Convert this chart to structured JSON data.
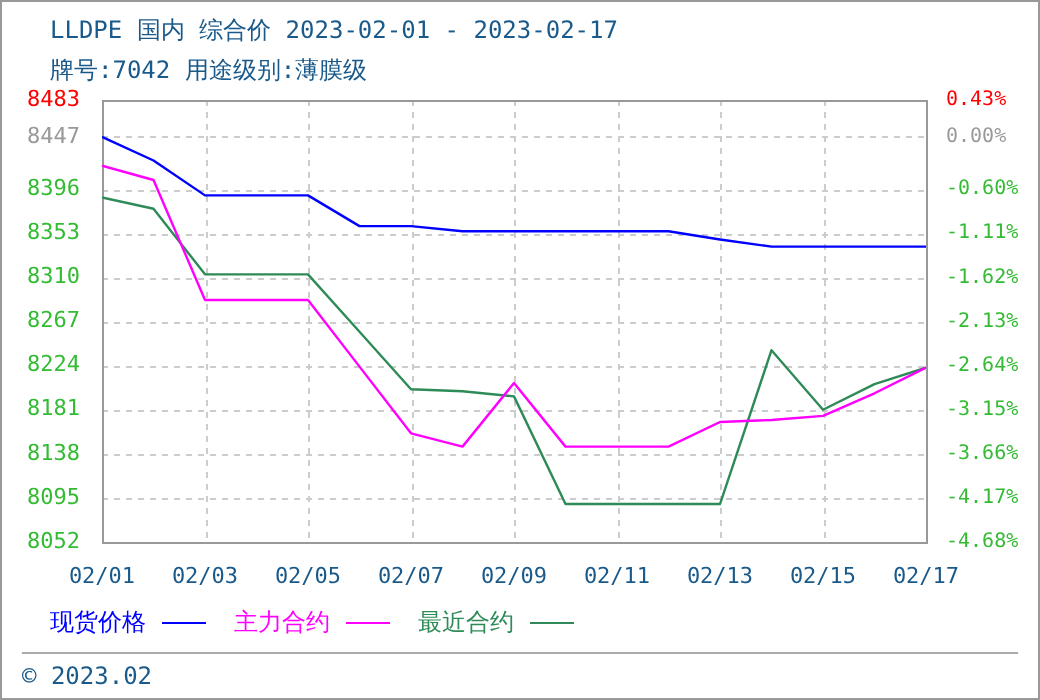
{
  "chart_data": {
    "type": "line",
    "title": "LLDPE 国内 综合价 2023-02-01 - 2023-02-17",
    "subtitle": "牌号:7042 用途级别:薄膜级",
    "annotations": [
      "© 2023.02"
    ],
    "x": [
      "2023-02-01",
      "2023-02-02",
      "2023-02-03",
      "2023-02-04",
      "2023-02-05",
      "2023-02-06",
      "2023-02-07",
      "2023-02-08",
      "2023-02-09",
      "2023-02-10",
      "2023-02-11",
      "2023-02-12",
      "2023-02-13",
      "2023-02-14",
      "2023-02-15",
      "2023-02-16",
      "2023-02-17"
    ],
    "series": [
      {
        "name": "现货价格",
        "color": "#0000ff",
        "values": [
          8447,
          8424,
          8390,
          8390,
          8390,
          8360,
          8360,
          8355,
          8355,
          8355,
          8355,
          8355,
          8347,
          8340,
          8340,
          8340,
          8340
        ]
      },
      {
        "name": "主力合约",
        "color": "#ff00ff",
        "values": [
          8419,
          8405,
          8288,
          8288,
          8288,
          8223,
          8158,
          8145,
          8207,
          8145,
          8145,
          8145,
          8169,
          8171,
          8175,
          8197,
          8222
        ]
      },
      {
        "name": "最近合约",
        "color": "#2e8b57",
        "values": [
          8388,
          8377,
          8313,
          8313,
          8313,
          8257,
          8201,
          8199,
          8194,
          8089,
          8089,
          8089,
          8089,
          8239,
          8181,
          8206,
          8222
        ]
      }
    ],
    "xlim": [
      "2023-02-01",
      "2023-02-17"
    ],
    "xticks": [
      {
        "value": "2023-02-01",
        "label": "02/01"
      },
      {
        "value": "2023-02-03",
        "label": "02/03"
      },
      {
        "value": "2023-02-05",
        "label": "02/05"
      },
      {
        "value": "2023-02-07",
        "label": "02/07"
      },
      {
        "value": "2023-02-09",
        "label": "02/09"
      },
      {
        "value": "2023-02-11",
        "label": "02/11"
      },
      {
        "value": "2023-02-13",
        "label": "02/13"
      },
      {
        "value": "2023-02-15",
        "label": "02/15"
      },
      {
        "value": "2023-02-17",
        "label": "02/17"
      }
    ],
    "ylim": [
      8052,
      8483
    ],
    "yticks": [
      8052,
      8095,
      8138,
      8181,
      8224,
      8267,
      8310,
      8353,
      8396,
      8447,
      8483
    ],
    "y2lim": [
      -4.68,
      0.43
    ],
    "y2ticks": [
      {
        "value": -4.68,
        "label": "-4.68%"
      },
      {
        "value": -4.17,
        "label": "-4.17%"
      },
      {
        "value": -3.66,
        "label": "-3.66%"
      },
      {
        "value": -3.15,
        "label": "-3.15%"
      },
      {
        "value": -2.64,
        "label": "-2.64%"
      },
      {
        "value": -2.13,
        "label": "-2.13%"
      },
      {
        "value": -1.62,
        "label": "-1.62%"
      },
      {
        "value": -1.11,
        "label": "-1.11%"
      },
      {
        "value": -0.6,
        "label": "-0.60%"
      },
      {
        "value": 0,
        "label": "0.00%"
      },
      {
        "value": 0.43,
        "label": "0.43%"
      }
    ],
    "grid": true,
    "legend": "bottom",
    "marker": "none",
    "line_style": "solid"
  }
}
